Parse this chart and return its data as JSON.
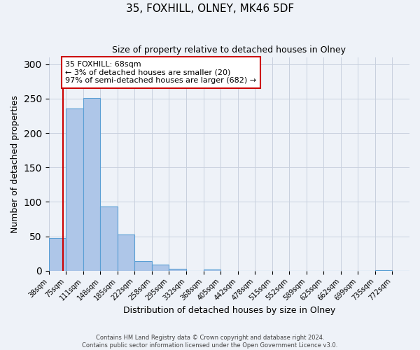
{
  "title": "35, FOXHILL, OLNEY, MK46 5DF",
  "subtitle": "Size of property relative to detached houses in Olney",
  "xlabel": "Distribution of detached houses by size in Olney",
  "ylabel": "Number of detached properties",
  "bin_labels": [
    "38sqm",
    "75sqm",
    "111sqm",
    "148sqm",
    "185sqm",
    "222sqm",
    "258sqm",
    "295sqm",
    "332sqm",
    "368sqm",
    "405sqm",
    "442sqm",
    "478sqm",
    "515sqm",
    "552sqm",
    "589sqm",
    "625sqm",
    "662sqm",
    "699sqm",
    "735sqm",
    "772sqm"
  ],
  "bar_heights": [
    48,
    236,
    251,
    93,
    53,
    14,
    9,
    3,
    0,
    2,
    0,
    0,
    0,
    0,
    0,
    0,
    0,
    0,
    0,
    1,
    0
  ],
  "bar_color": "#aec6e8",
  "bar_edge_color": "#5a9fd4",
  "property_line_bin_index": 0.81,
  "annotation_title": "35 FOXHILL: 68sqm",
  "annotation_line1": "← 3% of detached houses are smaller (20)",
  "annotation_line2": "97% of semi-detached houses are larger (682) →",
  "annotation_box_color": "#ffffff",
  "annotation_box_edge_color": "#cc0000",
  "property_line_color": "#cc0000",
  "ylim": [
    0,
    310
  ],
  "yticks": [
    0,
    50,
    100,
    150,
    200,
    250,
    300
  ],
  "footer1": "Contains HM Land Registry data © Crown copyright and database right 2024.",
  "footer2": "Contains public sector information licensed under the Open Government Licence v3.0.",
  "background_color": "#eef2f8"
}
